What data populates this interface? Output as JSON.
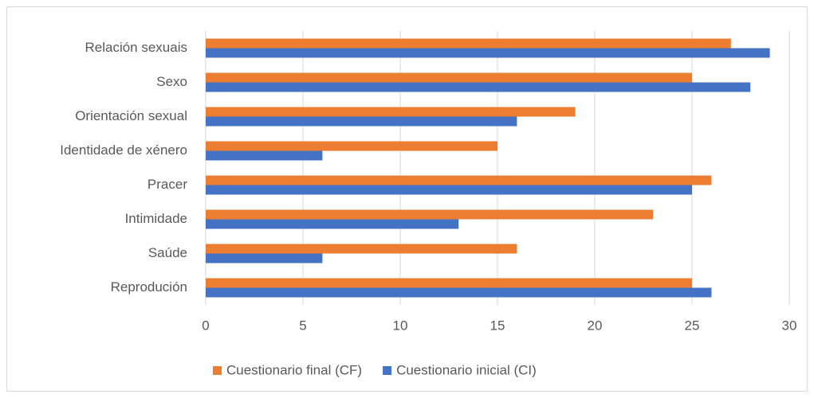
{
  "chart_data": {
    "type": "bar",
    "orientation": "horizontal",
    "categories": [
      "Relación sexuais",
      "Sexo",
      "Orientación sexual",
      "Identidade de xénero",
      "Pracer",
      "Intimidade",
      "Saúde",
      "Reprodución"
    ],
    "series": [
      {
        "name": "Cuestionario final (CF)",
        "color": "#ed7d31",
        "values": [
          27,
          25,
          19,
          15,
          26,
          23,
          16,
          25
        ]
      },
      {
        "name": "Cuestionario inicial (CI)",
        "color": "#4472c4",
        "values": [
          29,
          28,
          16,
          6,
          25,
          13,
          6,
          26
        ]
      }
    ],
    "xlim": [
      0,
      30
    ],
    "xticks": [
      0,
      5,
      10,
      15,
      20,
      25,
      30
    ],
    "grid": true,
    "legend": "bottom"
  }
}
